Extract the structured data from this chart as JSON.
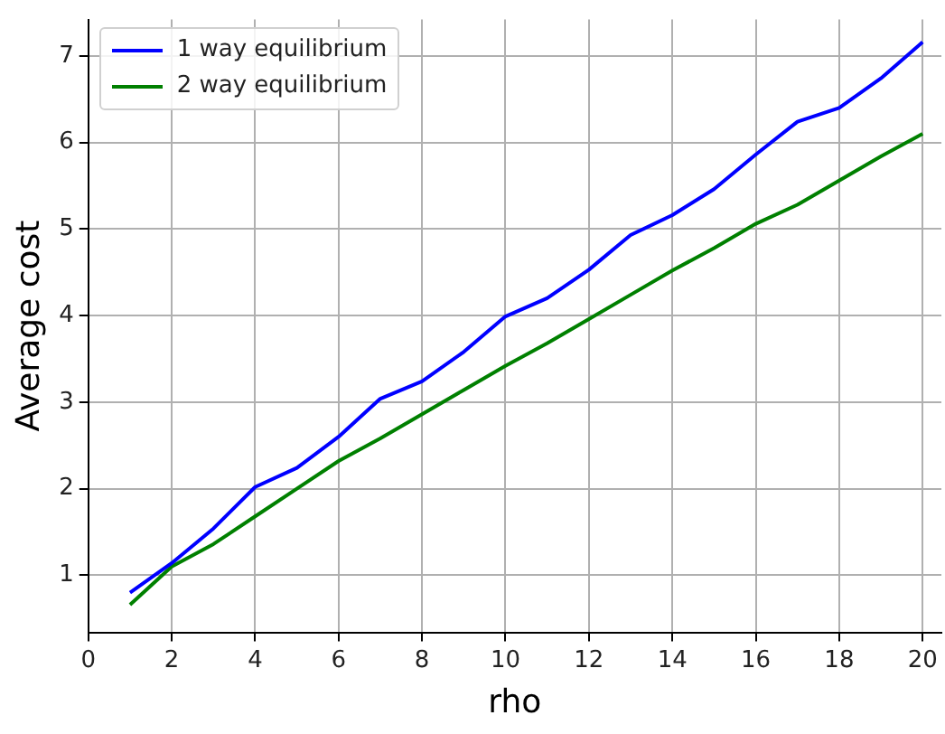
{
  "chart_data": {
    "type": "line",
    "xlabel": "rho",
    "ylabel": "Average cost",
    "x": [
      1,
      2,
      3,
      4,
      5,
      6,
      7,
      8,
      9,
      10,
      11,
      12,
      13,
      14,
      15,
      16,
      17,
      18,
      19,
      20
    ],
    "series": [
      {
        "name": "1 way equilibrium",
        "color": "#0000ff",
        "values": [
          0.8,
          1.14,
          1.54,
          2.02,
          2.24,
          2.6,
          3.04,
          3.24,
          3.58,
          3.99,
          4.2,
          4.53,
          4.93,
          5.16,
          5.46,
          5.86,
          6.24,
          6.4,
          6.74,
          7.16
        ]
      },
      {
        "name": "2 way equilibrium",
        "color": "#008000",
        "values": [
          0.66,
          1.1,
          1.36,
          1.68,
          2.0,
          2.32,
          2.58,
          2.86,
          3.14,
          3.42,
          3.68,
          3.96,
          4.24,
          4.52,
          4.78,
          5.06,
          5.28,
          5.56,
          5.84,
          6.1
        ]
      }
    ],
    "xlim": [
      0,
      20.45
    ],
    "ylim": [
      0.34,
      7.42
    ],
    "xticks": [
      0,
      2,
      4,
      6,
      8,
      10,
      12,
      14,
      16,
      18,
      20
    ],
    "yticks": [
      1,
      2,
      3,
      4,
      5,
      6,
      7
    ],
    "grid": true,
    "legend": "top left",
    "marker": "none",
    "line_style": "solid"
  }
}
